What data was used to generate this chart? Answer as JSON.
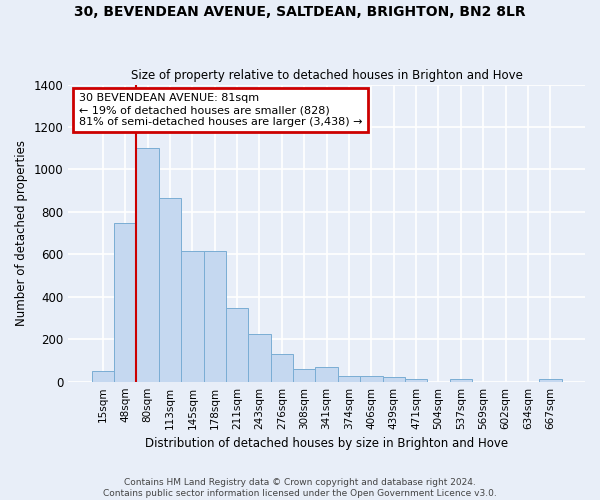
{
  "title1": "30, BEVENDEAN AVENUE, SALTDEAN, BRIGHTON, BN2 8LR",
  "title2": "Size of property relative to detached houses in Brighton and Hove",
  "xlabel": "Distribution of detached houses by size in Brighton and Hove",
  "ylabel": "Number of detached properties",
  "footer1": "Contains HM Land Registry data © Crown copyright and database right 2024.",
  "footer2": "Contains public sector information licensed under the Open Government Licence v3.0.",
  "bar_labels": [
    "15sqm",
    "48sqm",
    "80sqm",
    "113sqm",
    "145sqm",
    "178sqm",
    "211sqm",
    "243sqm",
    "276sqm",
    "308sqm",
    "341sqm",
    "374sqm",
    "406sqm",
    "439sqm",
    "471sqm",
    "504sqm",
    "537sqm",
    "569sqm",
    "602sqm",
    "634sqm",
    "667sqm"
  ],
  "bar_values": [
    50,
    750,
    1100,
    865,
    615,
    615,
    345,
    225,
    130,
    60,
    70,
    28,
    28,
    20,
    13,
    0,
    12,
    0,
    0,
    0,
    12
  ],
  "bar_color": "#c5d8f0",
  "bar_edge_color": "#7aadd4",
  "bg_color": "#e8eef8",
  "grid_color": "#ffffff",
  "annotation_text": "30 BEVENDEAN AVENUE: 81sqm\n← 19% of detached houses are smaller (828)\n81% of semi-detached houses are larger (3,438) →",
  "annotation_box_facecolor": "#ffffff",
  "annotation_border_color": "#cc0000",
  "red_line_x": 2,
  "ylim": [
    0,
    1400
  ],
  "yticks": [
    0,
    200,
    400,
    600,
    800,
    1000,
    1200,
    1400
  ]
}
